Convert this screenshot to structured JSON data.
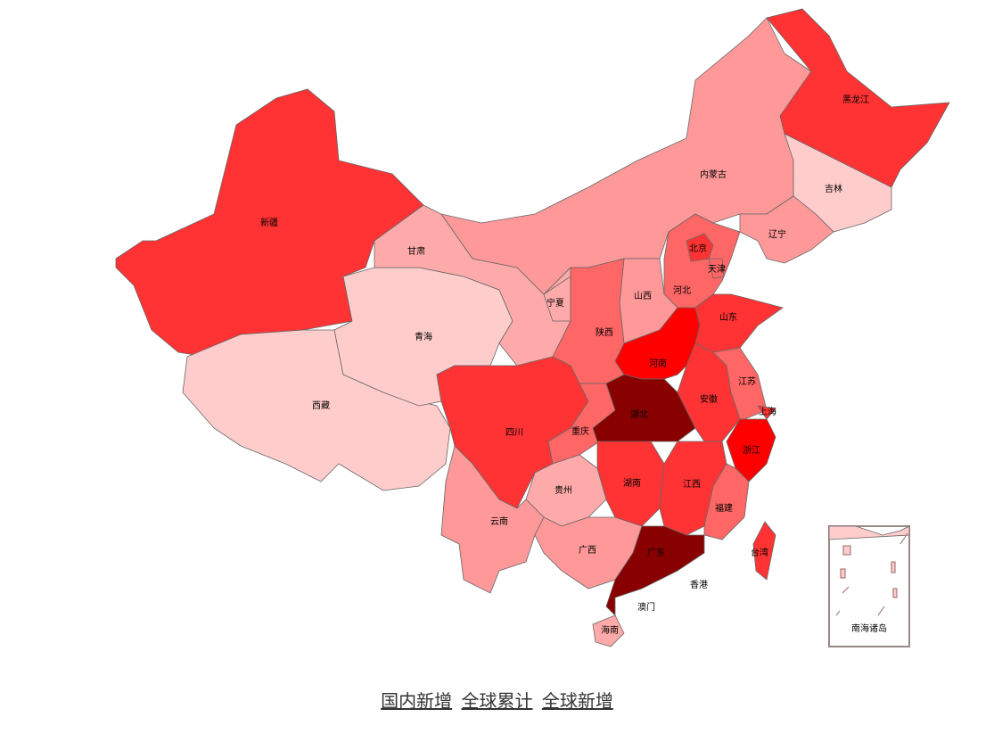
{
  "map": {
    "regions": [
      {
        "name": "新疆",
        "color": "#ff3333"
      },
      {
        "name": "西藏",
        "color": "#ffcccc"
      },
      {
        "name": "青海",
        "color": "#ffcccc"
      },
      {
        "name": "甘肃",
        "color": "#ffaaaa"
      },
      {
        "name": "内蒙古",
        "color": "#ff9999"
      },
      {
        "name": "黑龙江",
        "color": "#ff3333"
      },
      {
        "name": "吉林",
        "color": "#ffcccc"
      },
      {
        "name": "辽宁",
        "color": "#ff9999"
      },
      {
        "name": "河北",
        "color": "#ff6666"
      },
      {
        "name": "北京",
        "color": "#ff3333"
      },
      {
        "name": "天津",
        "color": "#ff6666"
      },
      {
        "name": "山西",
        "color": "#ff9999"
      },
      {
        "name": "山东",
        "color": "#ff3333"
      },
      {
        "name": "河南",
        "color": "#ff0000"
      },
      {
        "name": "陕西",
        "color": "#ff6666"
      },
      {
        "name": "宁夏",
        "color": "#ffaaaa"
      },
      {
        "name": "四川",
        "color": "#ff3333"
      },
      {
        "name": "重庆",
        "color": "#ff6666"
      },
      {
        "name": "湖北",
        "color": "#880000"
      },
      {
        "name": "安徽",
        "color": "#ff3333"
      },
      {
        "name": "江苏",
        "color": "#ff6666"
      },
      {
        "name": "上海",
        "color": "#ff3333"
      },
      {
        "name": "浙江",
        "color": "#ff0000"
      },
      {
        "name": "湖南",
        "color": "#ff3333"
      },
      {
        "name": "江西",
        "color": "#ff3333"
      },
      {
        "name": "福建",
        "color": "#ff6666"
      },
      {
        "name": "贵州",
        "color": "#ffaaaa"
      },
      {
        "name": "云南",
        "color": "#ff9999"
      },
      {
        "name": "广西",
        "color": "#ff9999"
      },
      {
        "name": "广东",
        "color": "#880000"
      },
      {
        "name": "海南",
        "color": "#ffaaaa"
      },
      {
        "name": "台湾",
        "color": "#ff3333"
      },
      {
        "name": "香港"
      },
      {
        "name": "澳门"
      }
    ],
    "inset_label": "南海诸岛"
  },
  "links": [
    "国内新增",
    "全球累计",
    "全球新增"
  ]
}
